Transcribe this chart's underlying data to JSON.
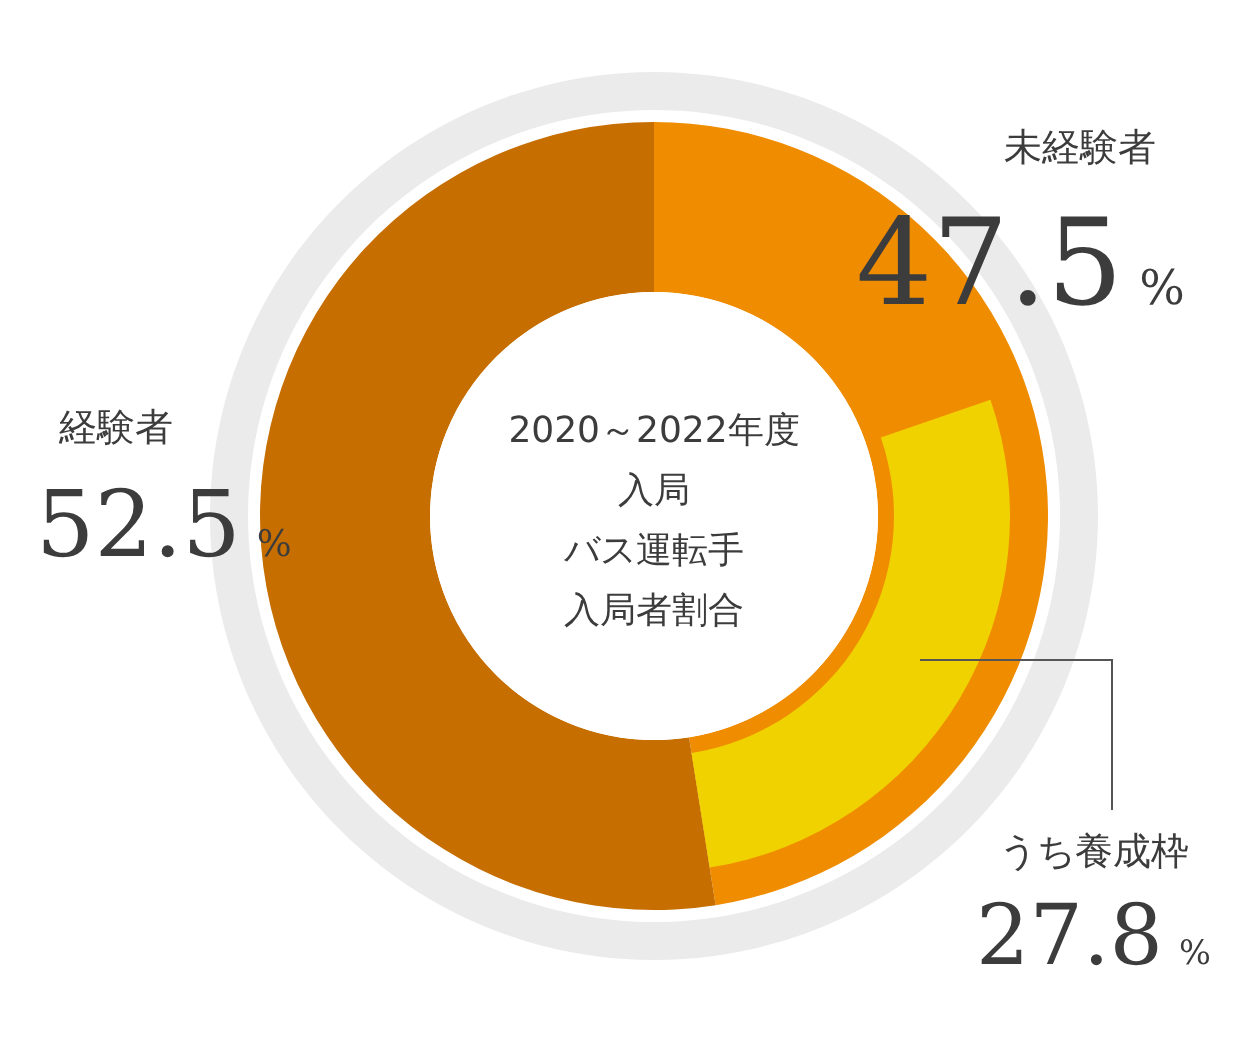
{
  "chart_data": {
    "type": "donut",
    "title": "2020～2022年度",
    "annotations": [
      "入局",
      "バス運転手",
      "入局者割合"
    ],
    "categories": [
      "未経験者",
      "経験者"
    ],
    "values": [
      47.5,
      52.5
    ],
    "colors": [
      "#f08c00",
      "#c66e00"
    ],
    "value_labels": [
      "47.5%",
      "52.5%"
    ],
    "series": [
      {
        "name": "うち養成枠",
        "type": "donut",
        "values": [
          27.8,
          null
        ],
        "colors": [
          "#f0d200",
          null
        ],
        "value_labels": [
          "27.8%",
          null
        ]
      }
    ]
  }
}
